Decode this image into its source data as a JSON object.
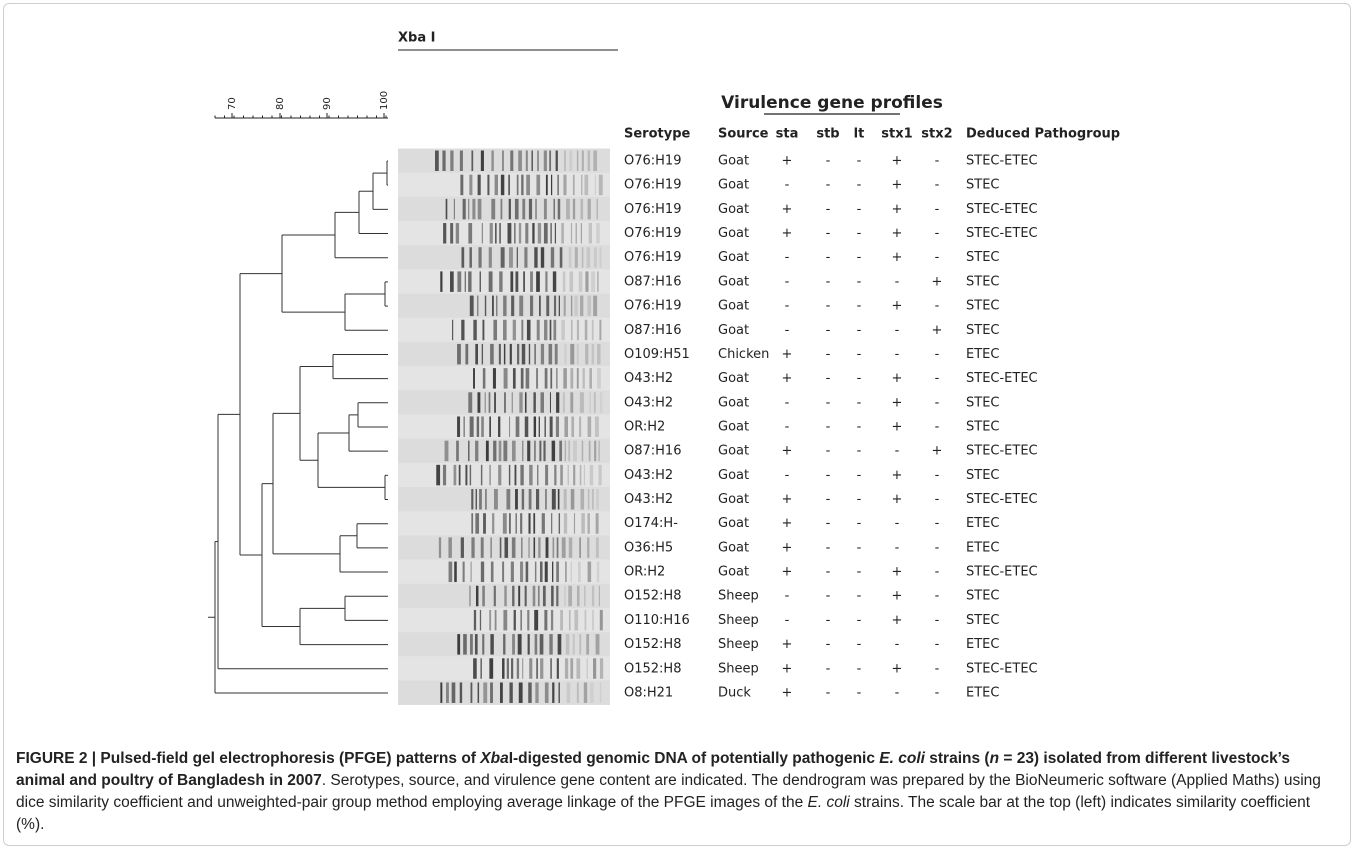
{
  "header": {
    "enzyme": "Xba I",
    "profiles_title": "Virulence gene profiles"
  },
  "scale": {
    "ticks": [
      "70",
      "80",
      "90",
      "100"
    ]
  },
  "table": {
    "columns": [
      "Serotype",
      "Source",
      "sta",
      "stb",
      "lt",
      "stx1",
      "stx2",
      "Deduced Pathogroup"
    ],
    "rows": [
      [
        "O76:H19",
        "Goat",
        "+",
        "-",
        "-",
        "+",
        "-",
        "STEC-ETEC"
      ],
      [
        "O76:H19",
        "Goat",
        "-",
        "-",
        "-",
        "+",
        "-",
        "STEC"
      ],
      [
        "O76:H19",
        "Goat",
        "+",
        "-",
        "-",
        "+",
        "-",
        "STEC-ETEC"
      ],
      [
        "O76:H19",
        "Goat",
        "+",
        "-",
        "-",
        "+",
        "-",
        "STEC-ETEC"
      ],
      [
        "O76:H19",
        "Goat",
        "-",
        "-",
        "-",
        "+",
        "-",
        "STEC"
      ],
      [
        "O87:H16",
        "Goat",
        "-",
        "-",
        "-",
        "-",
        "+",
        "STEC"
      ],
      [
        "O76:H19",
        "Goat",
        "-",
        "-",
        "-",
        "+",
        "-",
        "STEC"
      ],
      [
        "O87:H16",
        "Goat",
        "-",
        "-",
        "-",
        "-",
        "+",
        "STEC"
      ],
      [
        "O109:H51",
        "Chicken",
        "+",
        "-",
        "-",
        "-",
        "-",
        "ETEC"
      ],
      [
        "O43:H2",
        "Goat",
        "+",
        "-",
        "-",
        "+",
        "-",
        "STEC-ETEC"
      ],
      [
        "O43:H2",
        "Goat",
        "-",
        "-",
        "-",
        "+",
        "-",
        "STEC"
      ],
      [
        "OR:H2",
        "Goat",
        "-",
        "-",
        "-",
        "+",
        "-",
        "STEC"
      ],
      [
        "O87:H16",
        "Goat",
        "+",
        "-",
        "-",
        "-",
        "+",
        "STEC-ETEC"
      ],
      [
        "O43:H2",
        "Goat",
        "-",
        "-",
        "-",
        "+",
        "-",
        "STEC"
      ],
      [
        "O43:H2",
        "Goat",
        "+",
        "-",
        "-",
        "+",
        "-",
        "STEC-ETEC"
      ],
      [
        "O174:H-",
        "Goat",
        "+",
        "-",
        "-",
        "-",
        "-",
        "ETEC"
      ],
      [
        "O36:H5",
        "Goat",
        "+",
        "-",
        "-",
        "-",
        "-",
        "ETEC"
      ],
      [
        "OR:H2",
        "Goat",
        "+",
        "-",
        "-",
        "+",
        "-",
        "STEC-ETEC"
      ],
      [
        "O152:H8",
        "Sheep",
        "-",
        "-",
        "-",
        "+",
        "-",
        "STEC"
      ],
      [
        "O110:H16",
        "Sheep",
        "-",
        "-",
        "-",
        "+",
        "-",
        "STEC"
      ],
      [
        "O152:H8",
        "Sheep",
        "+",
        "-",
        "-",
        "-",
        "-",
        "ETEC"
      ],
      [
        "O152:H8",
        "Sheep",
        "+",
        "-",
        "-",
        "+",
        "-",
        "STEC-ETEC"
      ],
      [
        "O8:H21",
        "Duck",
        "+",
        "-",
        "-",
        "-",
        "-",
        "ETEC"
      ]
    ]
  },
  "caption": {
    "segments": [
      "FIGURE 2 | Pulsed-field gel electrophoresis (PFGE) patterns of ",
      "Xba",
      "I-digested genomic DNA of potentially pathogenic ",
      "E. coli",
      " strains (",
      "n",
      " = 23) isolated from different livestock’s animal and poultry of Bangladesh in 2007",
      ". Serotypes, source, and virulence gene content are indicated. The dendrogram was prepared by the BioNeumeric software (Applied Maths) using dice similarity coefficient and unweighted-pair group method employing average linkage of the PFGE images of the ",
      "E. coli",
      " strains. The scale bar at the top (left) indicates similarity coefficient (%)."
    ]
  }
}
